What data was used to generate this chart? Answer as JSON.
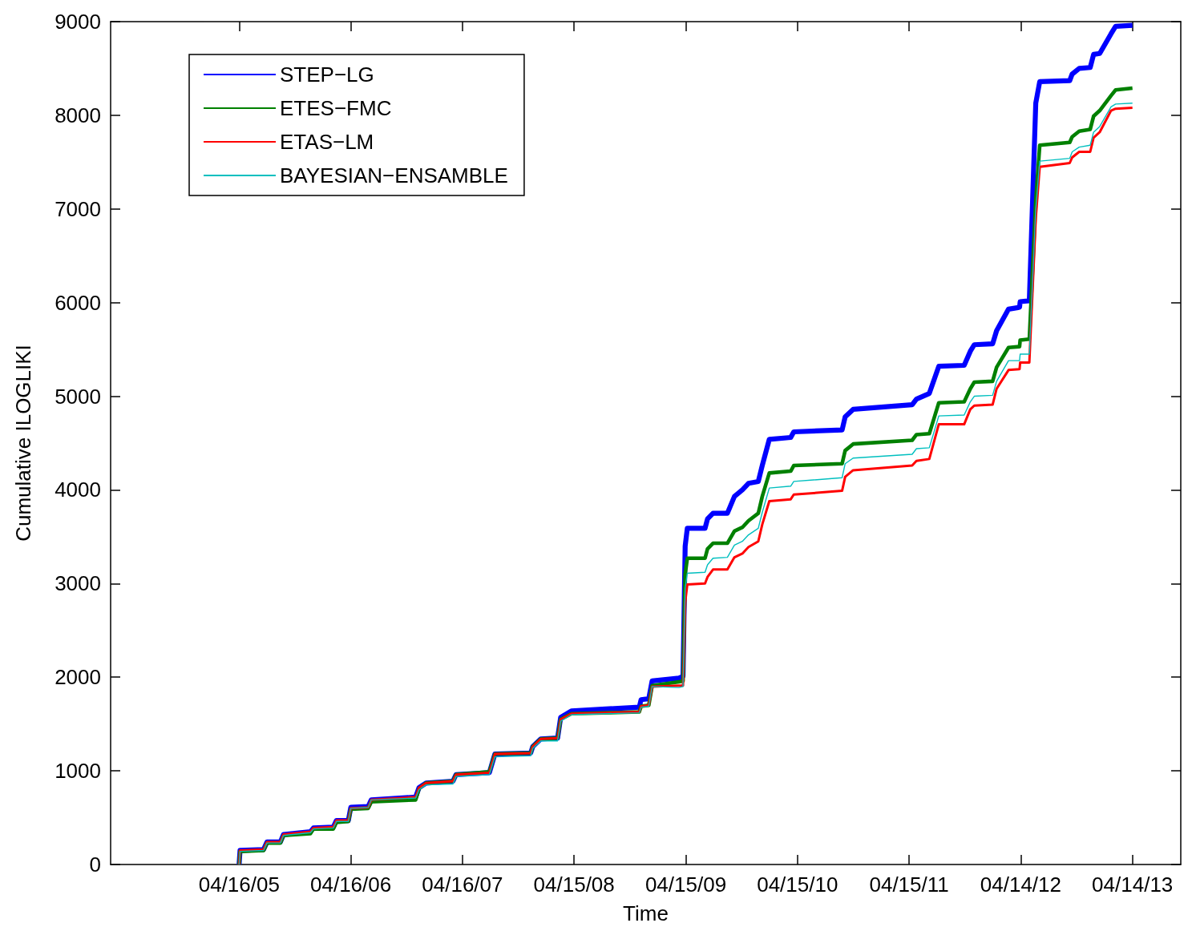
{
  "chart_data": {
    "type": "line",
    "xlabel": "Time",
    "ylabel": "Cumulative ILOGLIKI",
    "legend": "top left",
    "xlim": [
      "2004-02-21",
      "2013-09-19"
    ],
    "xticks": [
      {
        "value": "2005-04-16",
        "label": "04/16/05"
      },
      {
        "value": "2006-04-16",
        "label": "04/16/06"
      },
      {
        "value": "2007-04-16",
        "label": "04/16/07"
      },
      {
        "value": "2008-04-15",
        "label": "04/15/08"
      },
      {
        "value": "2009-04-15",
        "label": "04/15/09"
      },
      {
        "value": "2010-04-15",
        "label": "04/15/10"
      },
      {
        "value": "2011-04-15",
        "label": "04/15/11"
      },
      {
        "value": "2012-04-14",
        "label": "04/14/12"
      },
      {
        "value": "2013-04-14",
        "label": "04/14/13"
      }
    ],
    "ylim": [
      0,
      9000
    ],
    "yticks": [
      0,
      1000,
      2000,
      3000,
      4000,
      5000,
      6000,
      7000,
      8000,
      9000
    ],
    "x": [
      "2005-04-16",
      "2005-04-19",
      "2005-07-05",
      "2005-07-16",
      "2005-08-29",
      "2005-09-08",
      "2005-12-05",
      "2005-12-15",
      "2006-02-18",
      "2006-02-28",
      "2006-04-08",
      "2006-04-16",
      "2006-06-12",
      "2006-06-22",
      "2006-11-14",
      "2006-11-25",
      "2006-12-18",
      "2007-03-16",
      "2007-03-26",
      "2007-07-13",
      "2007-07-31",
      "2007-11-25",
      "2007-12-02",
      "2007-12-28",
      "2008-02-21",
      "2008-03-02",
      "2008-04-06",
      "2008-11-14",
      "2008-11-20",
      "2008-12-15",
      "2008-12-26",
      "2009-03-24",
      "2009-04-06",
      "2009-04-13",
      "2009-04-20",
      "2009-06-17",
      "2009-06-25",
      "2009-07-13",
      "2009-08-29",
      "2009-09-21",
      "2009-10-17",
      "2009-11-06",
      "2009-12-08",
      "2009-12-21",
      "2010-01-13",
      "2010-03-24",
      "2010-04-03",
      "2010-09-08",
      "2010-09-18",
      "2010-10-14",
      "2011-04-25",
      "2011-05-09",
      "2011-06-20",
      "2011-07-21",
      "2011-10-12",
      "2011-11-01",
      "2011-11-14",
      "2012-01-13",
      "2012-01-26",
      "2012-03-05",
      "2012-04-10",
      "2012-04-12",
      "2012-05-12",
      "2012-06-02",
      "2012-06-15",
      "2012-09-21",
      "2012-09-29",
      "2012-10-22",
      "2012-11-27",
      "2012-12-08",
      "2012-12-28",
      "2013-02-03",
      "2013-02-18",
      "2013-04-14"
    ],
    "series": [
      {
        "name": "STEP−LG",
        "color": "#0000ff",
        "values": [
          0,
          150,
          160,
          240,
          240,
          320,
          350,
          390,
          400,
          470,
          470,
          610,
          620,
          690,
          720,
          820,
          870,
          890,
          960,
          980,
          1180,
          1190,
          1260,
          1340,
          1350,
          1570,
          1640,
          1680,
          1760,
          1770,
          1960,
          1990,
          2010,
          3400,
          3590,
          3590,
          3690,
          3750,
          3750,
          3930,
          4000,
          4070,
          4090,
          4260,
          4540,
          4560,
          4620,
          4640,
          4780,
          4860,
          4910,
          4970,
          5030,
          5320,
          5330,
          5480,
          5550,
          5560,
          5700,
          5930,
          5950,
          6010,
          6020,
          8130,
          8360,
          8370,
          8440,
          8500,
          8510,
          8650,
          8660,
          8870,
          8950,
          8960
        ]
      },
      {
        "name": "ETES−FMC",
        "color": "#008000",
        "values": [
          0,
          140,
          150,
          230,
          230,
          310,
          330,
          380,
          380,
          450,
          460,
          590,
          600,
          670,
          690,
          810,
          870,
          890,
          960,
          990,
          1180,
          1190,
          1260,
          1340,
          1350,
          1550,
          1610,
          1630,
          1690,
          1700,
          1910,
          1950,
          1960,
          3100,
          3270,
          3270,
          3370,
          3430,
          3430,
          3560,
          3600,
          3670,
          3750,
          3930,
          4180,
          4200,
          4260,
          4280,
          4420,
          4490,
          4530,
          4590,
          4600,
          4930,
          4940,
          5080,
          5150,
          5160,
          5310,
          5520,
          5530,
          5600,
          5610,
          7090,
          7680,
          7710,
          7770,
          7830,
          7850,
          7990,
          8050,
          8210,
          8270,
          8290
        ]
      },
      {
        "name": "ETAS−LM",
        "color": "#ff0000",
        "values": [
          0,
          150,
          160,
          240,
          240,
          320,
          350,
          390,
          400,
          470,
          470,
          600,
          610,
          690,
          720,
          820,
          870,
          890,
          960,
          980,
          1180,
          1190,
          1260,
          1340,
          1350,
          1550,
          1610,
          1630,
          1690,
          1700,
          1900,
          1910,
          1910,
          2800,
          2990,
          3000,
          3070,
          3150,
          3150,
          3280,
          3320,
          3390,
          3450,
          3630,
          3880,
          3900,
          3950,
          3990,
          4140,
          4210,
          4260,
          4310,
          4330,
          4700,
          4700,
          4860,
          4900,
          4910,
          5080,
          5280,
          5290,
          5360,
          5360,
          6900,
          7450,
          7490,
          7550,
          7610,
          7610,
          7760,
          7820,
          8050,
          8070,
          8080
        ]
      },
      {
        "name": "BAYESIAN−ENSAMBLE",
        "color": "#00bfbf",
        "values": [
          0,
          140,
          150,
          230,
          230,
          310,
          340,
          380,
          390,
          460,
          460,
          600,
          610,
          690,
          710,
          800,
          850,
          860,
          940,
          960,
          1150,
          1160,
          1240,
          1320,
          1320,
          1530,
          1600,
          1620,
          1680,
          1690,
          1900,
          1890,
          1900,
          2950,
          3110,
          3120,
          3200,
          3270,
          3280,
          3410,
          3450,
          3520,
          3590,
          3760,
          4020,
          4040,
          4090,
          4130,
          4280,
          4340,
          4380,
          4440,
          4450,
          4790,
          4800,
          4940,
          5000,
          5010,
          5160,
          5380,
          5380,
          5450,
          5450,
          7000,
          7510,
          7540,
          7610,
          7660,
          7680,
          7820,
          7880,
          8090,
          8120,
          8130
        ]
      }
    ]
  }
}
